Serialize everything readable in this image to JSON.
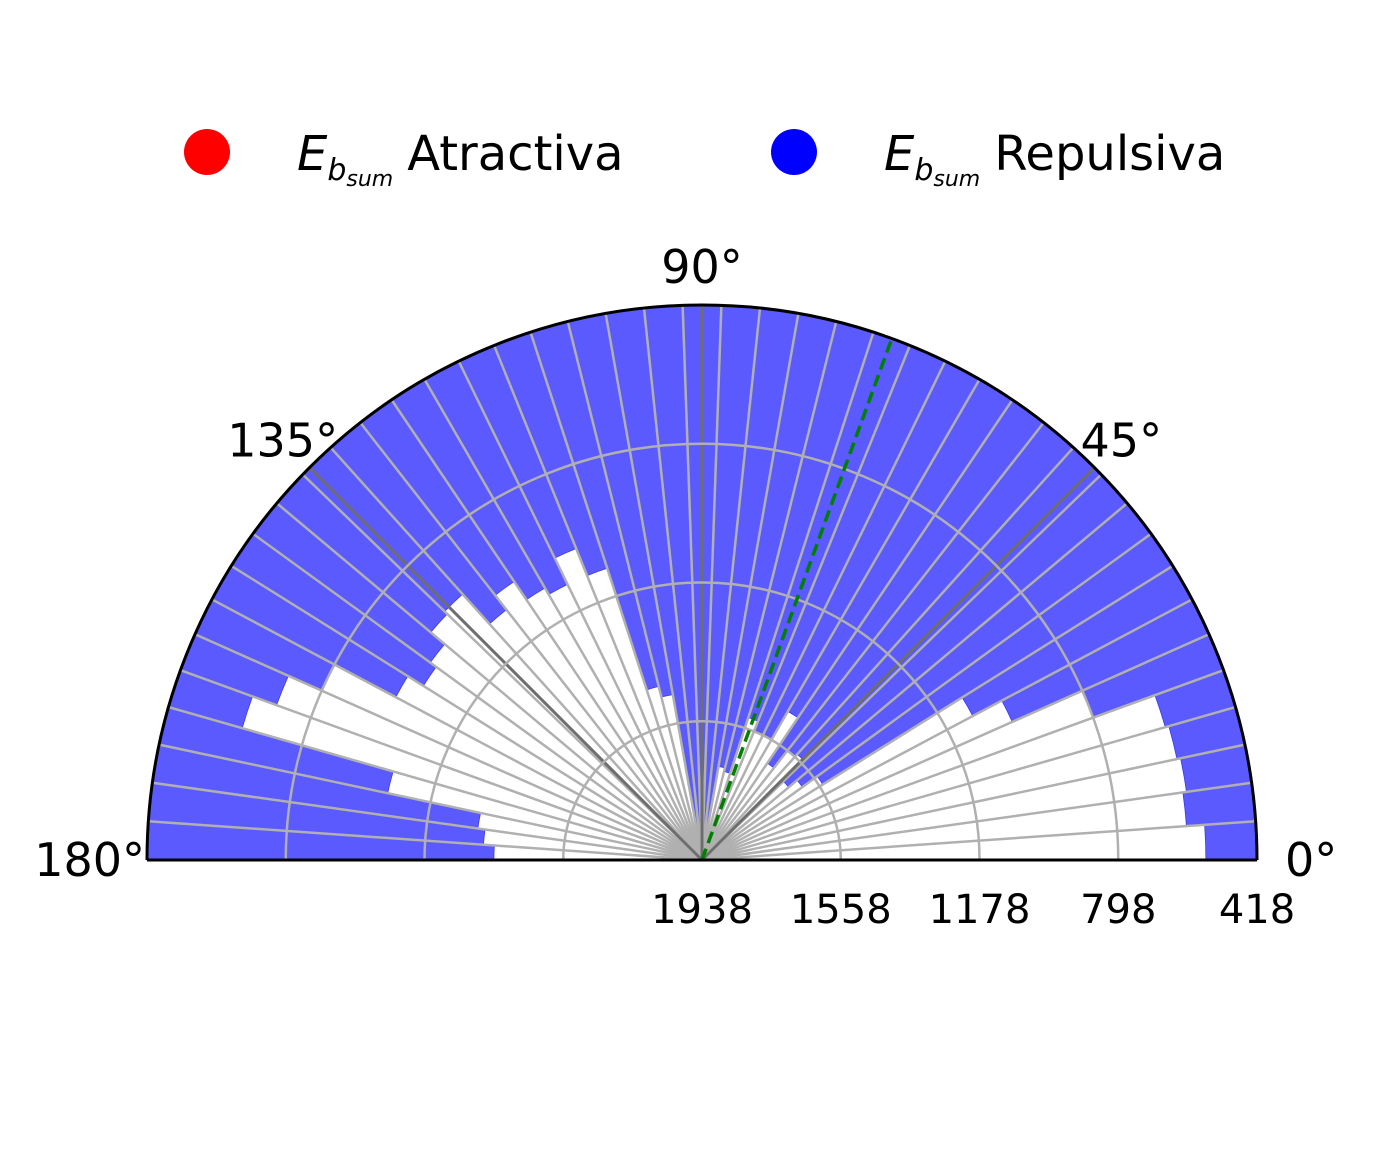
{
  "chart_data": {
    "type": "polar-bar",
    "title": "",
    "legend": {
      "placement": "top",
      "entries": [
        {
          "symbol": "E",
          "subscript": "b",
          "subsubscript": "sum",
          "label": "Atractiva",
          "color": "#ff0000"
        },
        {
          "symbol": "E",
          "subscript": "b",
          "subsubscript": "sum",
          "label": "Repulsiva",
          "color": "#0000ff"
        }
      ]
    },
    "theta_range_deg": [
      0,
      180
    ],
    "angle_ticks": [
      {
        "deg": 0,
        "label": "0°"
      },
      {
        "deg": 45,
        "label": "45°"
      },
      {
        "deg": 90,
        "label": "90°"
      },
      {
        "deg": 135,
        "label": "135°"
      },
      {
        "deg": 180,
        "label": "180°"
      }
    ],
    "radial_axis": {
      "inverted": true,
      "center_value": 1938,
      "outer_value": 418,
      "ticks": [
        {
          "value": 1938,
          "label": "1938"
        },
        {
          "value": 1558,
          "label": "1558"
        },
        {
          "value": 1178,
          "label": "1178"
        },
        {
          "value": 798,
          "label": "798"
        },
        {
          "value": 418,
          "label": "418"
        }
      ]
    },
    "bin_width_deg": 4,
    "bar_color": "#5a5aff",
    "reference_line": {
      "theta_deg": 70,
      "color": "#008000",
      "style": "dashed"
    },
    "series": [
      {
        "name": "Repulsiva",
        "theta_start_deg": [
          0,
          4,
          8,
          12,
          16,
          20,
          24,
          28,
          32,
          36,
          40,
          44,
          48,
          52,
          56,
          60,
          64,
          68,
          72,
          76,
          80,
          84,
          88,
          92,
          96,
          100,
          104,
          108,
          112,
          116,
          120,
          124,
          128,
          132,
          136,
          140,
          144,
          148,
          152,
          156,
          160,
          164,
          168,
          172,
          176
        ],
        "inner_value": [
          558,
          608,
          598,
          608,
          618,
          798,
          1008,
          1098,
          1548,
          1598,
          1628,
          1548,
          1558,
          1618,
          1468,
          1558,
          1558,
          1528,
          1688,
          1678,
          1898,
          1898,
          1898,
          1908,
          1898,
          1478,
          1448,
          1098,
          1018,
          1098,
          1078,
          1018,
          1068,
          958,
          968,
          1018,
          1038,
          988,
          798,
          698,
          628,
          1058,
          1318,
          1338,
          1368
        ]
      }
    ]
  }
}
